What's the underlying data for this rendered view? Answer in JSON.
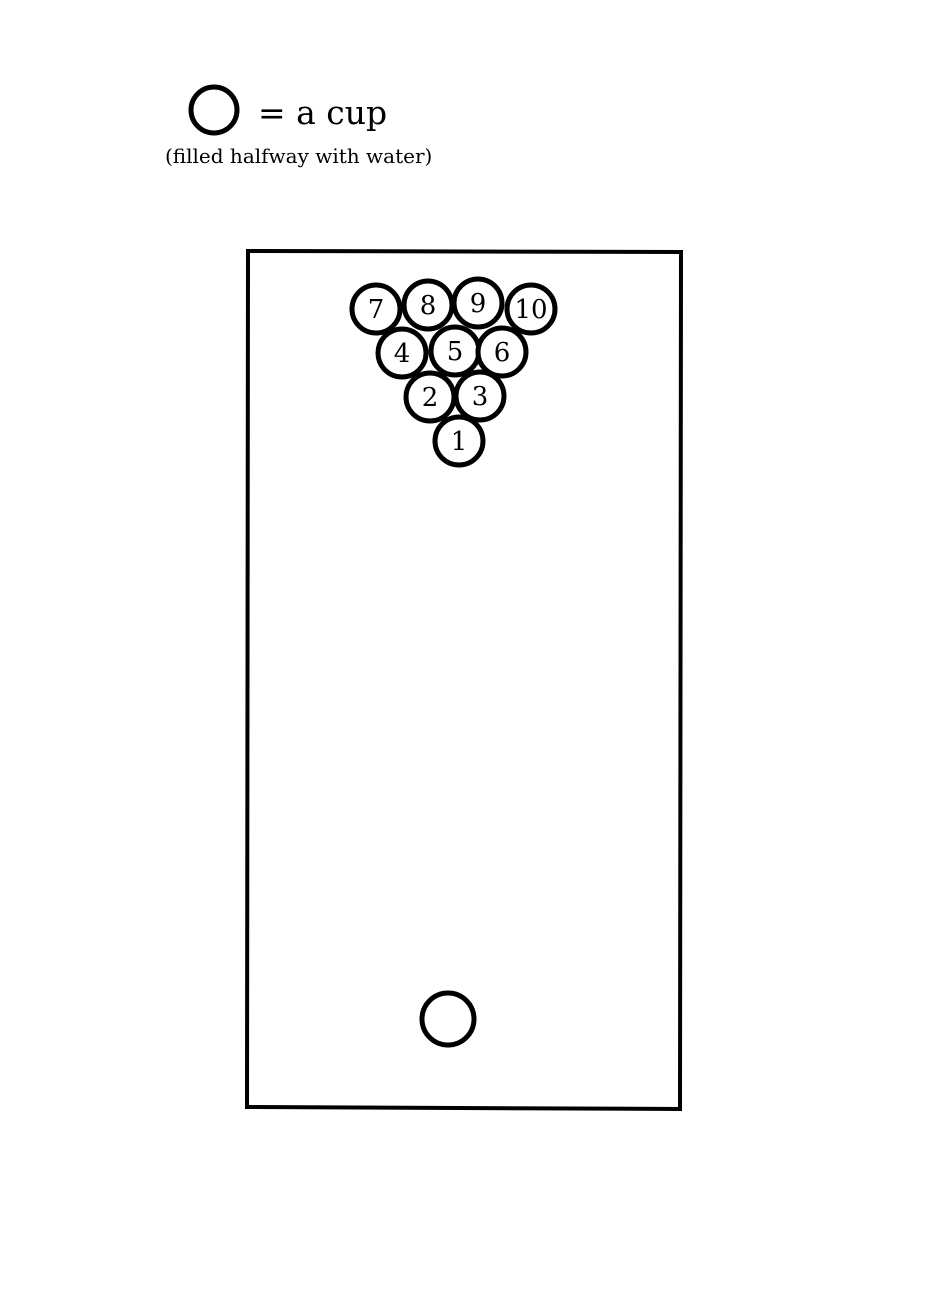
{
  "legend": {
    "symbol_icon": "circle-outline-icon",
    "text": "= a cup",
    "note": "(filled halfway with water)"
  },
  "table": {
    "cups": [
      {
        "label": "7"
      },
      {
        "label": "8"
      },
      {
        "label": "9"
      },
      {
        "label": "10"
      },
      {
        "label": "4"
      },
      {
        "label": "5"
      },
      {
        "label": "6"
      },
      {
        "label": "2"
      },
      {
        "label": "3"
      },
      {
        "label": "1"
      }
    ],
    "shooter_cup": {
      "label": ""
    }
  },
  "colors": {
    "stroke": "#000000",
    "background": "#ffffff"
  }
}
